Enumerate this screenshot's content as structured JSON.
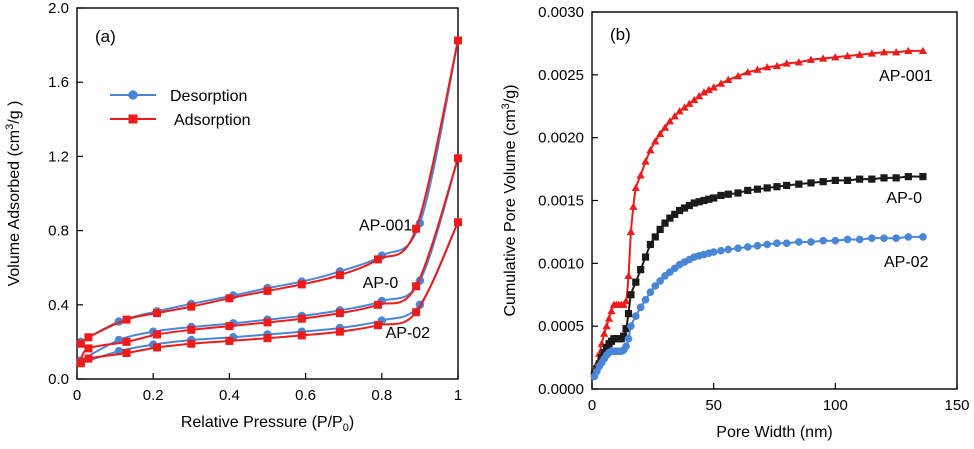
{
  "colors": {
    "desorption": "#4a86d6",
    "adsorption": "#ee1b1b",
    "ap001_b": "#ee1b1b",
    "ap0_b": "#1a1a1a",
    "ap02_b": "#4a86d6"
  },
  "chart_data": [
    {
      "type": "line",
      "panel_label": "(a)",
      "title": "",
      "xlabel": "Relative Pressure (P/P",
      "xlabel_sub": "0",
      "xlabel_end": ")",
      "ylabel": "Volume  Adsorbed (cm",
      "ylabel_sup": "3",
      "ylabel_end": "/g )",
      "xlim": [
        0,
        1
      ],
      "ylim": [
        0,
        2.0
      ],
      "x_ticks": [
        0,
        0.2,
        0.4,
        0.6,
        0.8,
        1
      ],
      "x_tick_labels": [
        "0",
        "0.2",
        "0.4",
        "0.6",
        "0.8",
        "1"
      ],
      "y_ticks": [
        0,
        0.4,
        0.8,
        1.2,
        1.6,
        2.0
      ],
      "y_tick_labels": [
        "0.0",
        "0.4",
        "0.8",
        "1.2",
        "1.6",
        "2.0"
      ],
      "legend": {
        "position": "upper-left",
        "entries": [
          {
            "name": "Desorption",
            "marker": "circle"
          },
          {
            "name": "Adsorption",
            "marker": "square"
          }
        ]
      },
      "series_labels": [
        {
          "text": "AP-001",
          "x": 0.74,
          "y": 0.8
        },
        {
          "text": "AP-0",
          "x": 0.75,
          "y": 0.49
        },
        {
          "text": "AP-02",
          "x": 0.81,
          "y": 0.22
        }
      ],
      "series": [
        {
          "name": "AP-001 Desorption",
          "kind": "desorption",
          "x": [
            0.01,
            0.11,
            0.21,
            0.3,
            0.41,
            0.5,
            0.59,
            0.69,
            0.8,
            0.9,
            1.0
          ],
          "y": [
            0.2,
            0.31,
            0.365,
            0.405,
            0.45,
            0.49,
            0.525,
            0.58,
            0.665,
            0.84,
            1.825
          ]
        },
        {
          "name": "AP-001 Adsorption",
          "kind": "adsorption",
          "x": [
            0.01,
            0.03,
            0.13,
            0.21,
            0.3,
            0.4,
            0.5,
            0.59,
            0.69,
            0.79,
            0.89,
            1.0
          ],
          "y": [
            0.19,
            0.225,
            0.32,
            0.355,
            0.39,
            0.435,
            0.475,
            0.51,
            0.56,
            0.645,
            0.81,
            1.825
          ]
        },
        {
          "name": "AP-0 Desorption",
          "kind": "desorption",
          "x": [
            0.01,
            0.11,
            0.2,
            0.3,
            0.41,
            0.5,
            0.59,
            0.69,
            0.8,
            0.9,
            1.0
          ],
          "y": [
            0.1,
            0.21,
            0.255,
            0.28,
            0.3,
            0.32,
            0.34,
            0.37,
            0.42,
            0.53,
            1.19
          ]
        },
        {
          "name": "AP-0 Adsorption",
          "kind": "adsorption",
          "x": [
            0.01,
            0.03,
            0.13,
            0.21,
            0.3,
            0.4,
            0.5,
            0.59,
            0.69,
            0.79,
            0.89,
            1.0
          ],
          "y": [
            0.09,
            0.165,
            0.2,
            0.24,
            0.265,
            0.285,
            0.305,
            0.325,
            0.355,
            0.4,
            0.5,
            1.19
          ]
        },
        {
          "name": "AP-02 Desorption",
          "kind": "desorption",
          "x": [
            0.01,
            0.11,
            0.2,
            0.3,
            0.41,
            0.5,
            0.59,
            0.69,
            0.8,
            0.9,
            1.0
          ],
          "y": [
            0.085,
            0.15,
            0.185,
            0.21,
            0.225,
            0.24,
            0.255,
            0.275,
            0.315,
            0.4,
            0.845
          ]
        },
        {
          "name": "AP-02 Adsorption",
          "kind": "adsorption",
          "x": [
            0.01,
            0.03,
            0.13,
            0.21,
            0.3,
            0.4,
            0.5,
            0.59,
            0.69,
            0.79,
            0.89,
            1.0
          ],
          "y": [
            0.085,
            0.11,
            0.14,
            0.17,
            0.19,
            0.205,
            0.22,
            0.235,
            0.255,
            0.29,
            0.36,
            0.845
          ]
        }
      ]
    },
    {
      "type": "line",
      "panel_label": "(b)",
      "title": "",
      "xlabel": "Pore Width (nm)",
      "ylabel": "Cumulative Pore Volume  (cm",
      "ylabel_sup": "3",
      "ylabel_end": "/g)",
      "xlim": [
        0,
        150
      ],
      "ylim": [
        0,
        0.003
      ],
      "x_ticks": [
        0,
        50,
        100,
        150
      ],
      "x_tick_labels": [
        "0",
        "50",
        "100",
        "150"
      ],
      "y_ticks": [
        0,
        0.0005,
        0.001,
        0.0015,
        0.002,
        0.0025,
        0.003
      ],
      "y_tick_labels": [
        "0.0000",
        "0.0005",
        "0.0010",
        "0.0015",
        "0.0020",
        "0.0025",
        "0.0030"
      ],
      "series_labels": [
        {
          "text": "AP-001",
          "x": 118,
          "y": 0.00245
        },
        {
          "text": "AP-0",
          "x": 121,
          "y": 0.00148
        },
        {
          "text": "AP-02",
          "x": 120,
          "y": 0.00097
        }
      ],
      "series": [
        {
          "name": "AP-001",
          "marker": "triangle",
          "color_key": "ap001_b",
          "x": [
            1,
            2,
            3,
            4,
            5,
            6,
            7,
            8,
            9,
            10,
            11,
            12,
            13,
            14,
            15,
            16,
            17,
            18,
            20,
            22,
            24,
            26,
            28,
            30,
            32,
            34,
            36,
            38,
            40,
            42,
            44,
            46,
            48,
            50,
            53,
            56,
            60,
            64,
            68,
            72,
            76,
            80,
            85,
            90,
            95,
            100,
            105,
            110,
            115,
            120,
            125,
            130,
            136
          ],
          "y": [
            0.00015,
            0.0002,
            0.00028,
            0.00036,
            0.00044,
            0.0005,
            0.00056,
            0.00062,
            0.00067,
            0.00067,
            0.00067,
            0.00067,
            0.00067,
            0.0007,
            0.0009,
            0.00125,
            0.00145,
            0.0016,
            0.0017,
            0.00181,
            0.0019,
            0.00197,
            0.00203,
            0.00208,
            0.00213,
            0.00217,
            0.00221,
            0.00224,
            0.00227,
            0.0023,
            0.00233,
            0.00236,
            0.00238,
            0.0024,
            0.00243,
            0.00246,
            0.00249,
            0.00252,
            0.00254,
            0.00256,
            0.00257,
            0.00259,
            0.0026,
            0.00262,
            0.00263,
            0.00264,
            0.00265,
            0.00266,
            0.00267,
            0.00268,
            0.00268,
            0.00269,
            0.00269
          ]
        },
        {
          "name": "AP-0",
          "marker": "square",
          "color_key": "ap0_b",
          "x": [
            1,
            2,
            3,
            4,
            5,
            6,
            7,
            8,
            9,
            10,
            11,
            12,
            13,
            14,
            15,
            16,
            18,
            20,
            22,
            24,
            26,
            28,
            30,
            32,
            34,
            36,
            38,
            40,
            42,
            44,
            46,
            48,
            50,
            53,
            56,
            60,
            64,
            68,
            72,
            76,
            80,
            85,
            90,
            95,
            100,
            105,
            110,
            115,
            120,
            125,
            130,
            136
          ],
          "y": [
            0.00012,
            0.00016,
            0.0002,
            0.00025,
            0.00029,
            0.00033,
            0.00036,
            0.00038,
            0.0004,
            0.0004,
            0.0004,
            0.0004,
            0.00042,
            0.00048,
            0.0006,
            0.00075,
            0.00085,
            0.00095,
            0.00105,
            0.00115,
            0.00121,
            0.00127,
            0.00132,
            0.00136,
            0.00139,
            0.00142,
            0.00144,
            0.00146,
            0.00148,
            0.00149,
            0.0015,
            0.00151,
            0.00152,
            0.00154,
            0.00155,
            0.00156,
            0.00158,
            0.00159,
            0.0016,
            0.00161,
            0.00162,
            0.00163,
            0.00164,
            0.00165,
            0.00166,
            0.00166,
            0.00167,
            0.00167,
            0.00168,
            0.00168,
            0.00169,
            0.00169
          ]
        },
        {
          "name": "AP-02",
          "marker": "circle",
          "color_key": "ap02_b",
          "x": [
            1,
            2,
            3,
            4,
            5,
            6,
            7,
            8,
            9,
            10,
            11,
            12,
            13,
            14,
            15,
            16,
            18,
            20,
            22,
            24,
            26,
            28,
            30,
            32,
            34,
            36,
            38,
            40,
            42,
            44,
            46,
            48,
            50,
            53,
            56,
            60,
            64,
            68,
            72,
            76,
            80,
            85,
            90,
            95,
            100,
            105,
            110,
            115,
            120,
            125,
            130,
            136
          ],
          "y": [
            0.0001,
            0.00014,
            0.00018,
            0.00021,
            0.00024,
            0.00027,
            0.00029,
            0.0003,
            0.0003,
            0.0003,
            0.0003,
            0.0003,
            0.00031,
            0.00034,
            0.0004,
            0.0005,
            0.00058,
            0.00065,
            0.00071,
            0.00077,
            0.00082,
            0.00086,
            0.0009,
            0.00093,
            0.00096,
            0.00099,
            0.00101,
            0.00103,
            0.00105,
            0.00106,
            0.00107,
            0.00108,
            0.00109,
            0.0011,
            0.00111,
            0.00112,
            0.00113,
            0.00114,
            0.00115,
            0.00116,
            0.00116,
            0.00117,
            0.00117,
            0.00118,
            0.00118,
            0.00119,
            0.00119,
            0.0012,
            0.0012,
            0.0012,
            0.00121,
            0.00121
          ]
        }
      ]
    }
  ]
}
